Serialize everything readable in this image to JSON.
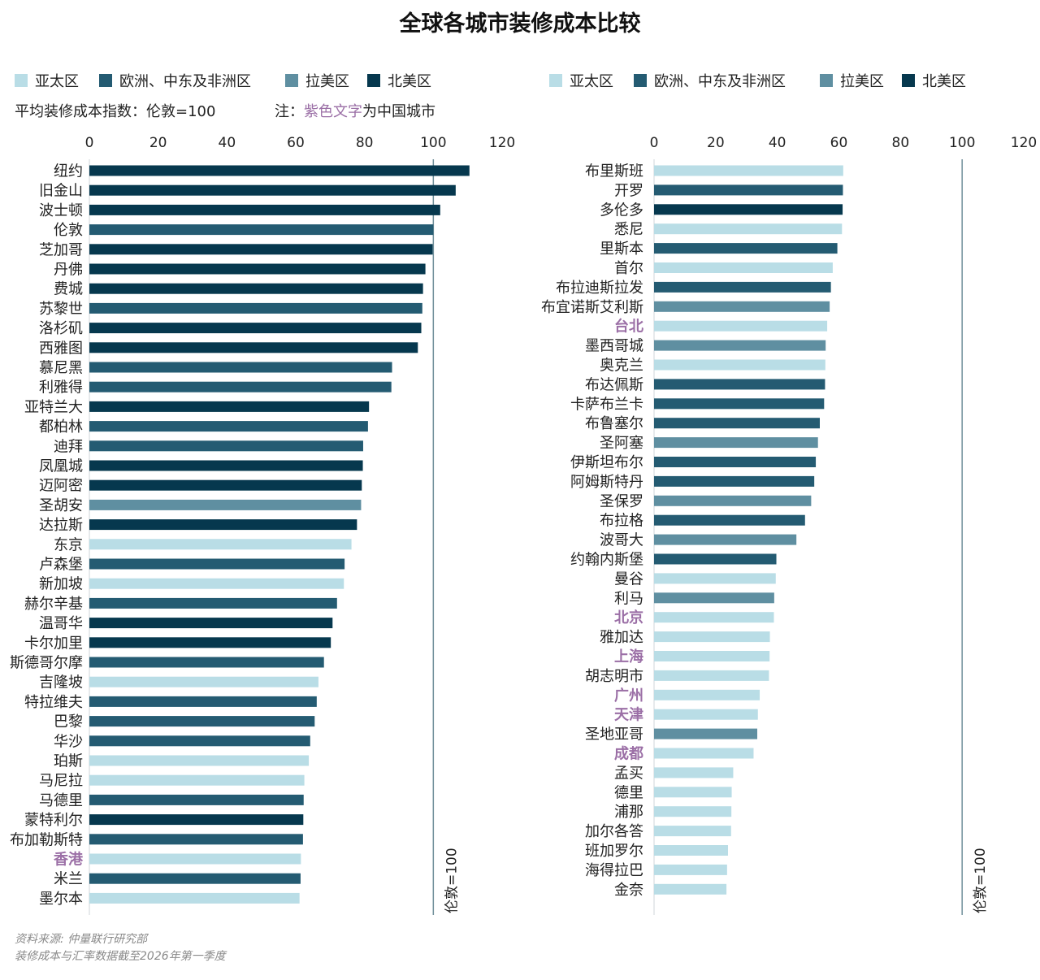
{
  "title": "全球各城市装修成本比较",
  "colors": {
    "亚太区": "#b9dde6",
    "欧洲、中东及非洲区": "#245b72",
    "拉美区": "#5f8fa1",
    "北美区": "#06384e",
    "china_label": "#9b6fa6",
    "reference_line": "#6f8e99"
  },
  "legend": [
    "亚太区",
    "欧洲、中东及非洲区",
    "拉美区",
    "北美区"
  ],
  "note_index": "平均装修成本指数：伦敦=100",
  "note_prefix": "注：",
  "note_purple": "紫色文字",
  "note_suffix": "为中国城市",
  "reference_label": "伦敦=100",
  "source_lines": [
    "资料来源: 仲量联行研究部",
    "装修成本与汇率数据截至2026年第一季度"
  ],
  "chart_data": [
    {
      "type": "bar",
      "orientation": "horizontal",
      "xlim": [
        0,
        120
      ],
      "xticks": [
        0,
        20,
        40,
        60,
        80,
        100,
        120
      ],
      "reference_value": 100,
      "bars": [
        {
          "city": "纽约",
          "value": 110.5,
          "region": "北美区"
        },
        {
          "city": "旧金山",
          "value": 106.5,
          "region": "北美区"
        },
        {
          "city": "波士顿",
          "value": 102,
          "region": "北美区"
        },
        {
          "city": "伦敦",
          "value": 100,
          "region": "欧洲、中东及非洲区"
        },
        {
          "city": "芝加哥",
          "value": 99.8,
          "region": "北美区"
        },
        {
          "city": "丹佛",
          "value": 97.7,
          "region": "北美区"
        },
        {
          "city": "费城",
          "value": 97,
          "region": "北美区"
        },
        {
          "city": "苏黎世",
          "value": 96.8,
          "region": "欧洲、中东及非洲区"
        },
        {
          "city": "洛杉矶",
          "value": 96.5,
          "region": "北美区"
        },
        {
          "city": "西雅图",
          "value": 95.5,
          "region": "北美区"
        },
        {
          "city": "慕尼黑",
          "value": 88,
          "region": "欧洲、中东及非洲区"
        },
        {
          "city": "利雅得",
          "value": 87.8,
          "region": "欧洲、中东及非洲区"
        },
        {
          "city": "亚特兰大",
          "value": 81.3,
          "region": "北美区"
        },
        {
          "city": "都柏林",
          "value": 81,
          "region": "欧洲、中东及非洲区"
        },
        {
          "city": "迪拜",
          "value": 79.6,
          "region": "欧洲、中东及非洲区"
        },
        {
          "city": "凤凰城",
          "value": 79.5,
          "region": "北美区"
        },
        {
          "city": "迈阿密",
          "value": 79.2,
          "region": "北美区"
        },
        {
          "city": "圣胡安",
          "value": 79,
          "region": "拉美区"
        },
        {
          "city": "达拉斯",
          "value": 77.8,
          "region": "北美区"
        },
        {
          "city": "东京",
          "value": 76.2,
          "region": "亚太区"
        },
        {
          "city": "卢森堡",
          "value": 74.2,
          "region": "欧洲、中东及非洲区"
        },
        {
          "city": "新加坡",
          "value": 74,
          "region": "亚太区"
        },
        {
          "city": "赫尔辛基",
          "value": 72,
          "region": "欧洲、中东及非洲区"
        },
        {
          "city": "温哥华",
          "value": 70.7,
          "region": "北美区"
        },
        {
          "city": "卡尔加里",
          "value": 70.2,
          "region": "北美区"
        },
        {
          "city": "斯德哥尔摩",
          "value": 68.2,
          "region": "欧洲、中东及非洲区"
        },
        {
          "city": "吉隆坡",
          "value": 66.6,
          "region": "亚太区"
        },
        {
          "city": "特拉维夫",
          "value": 66.1,
          "region": "欧洲、中东及非洲区"
        },
        {
          "city": "巴黎",
          "value": 65.5,
          "region": "欧洲、中东及非洲区"
        },
        {
          "city": "华沙",
          "value": 64.2,
          "region": "欧洲、中东及非洲区"
        },
        {
          "city": "珀斯",
          "value": 63.8,
          "region": "亚太区"
        },
        {
          "city": "马尼拉",
          "value": 62.5,
          "region": "亚太区"
        },
        {
          "city": "马德里",
          "value": 62.3,
          "region": "欧洲、中东及非洲区"
        },
        {
          "city": "蒙特利尔",
          "value": 62.2,
          "region": "北美区"
        },
        {
          "city": "布加勒斯特",
          "value": 62.1,
          "region": "欧洲、中东及非洲区"
        },
        {
          "city": "香港",
          "value": 61.5,
          "region": "亚太区",
          "china": true
        },
        {
          "city": "米兰",
          "value": 61.4,
          "region": "欧洲、中东及非洲区"
        },
        {
          "city": "墨尔本",
          "value": 61.1,
          "region": "亚太区"
        }
      ]
    },
    {
      "type": "bar",
      "orientation": "horizontal",
      "xlim": [
        0,
        120
      ],
      "xticks": [
        0,
        20,
        40,
        60,
        80,
        100,
        120
      ],
      "reference_value": 100,
      "bars": [
        {
          "city": "布里斯班",
          "value": 61.4,
          "region": "亚太区"
        },
        {
          "city": "开罗",
          "value": 61.3,
          "region": "欧洲、中东及非洲区"
        },
        {
          "city": "多伦多",
          "value": 61.2,
          "region": "北美区"
        },
        {
          "city": "悉尼",
          "value": 61,
          "region": "亚太区"
        },
        {
          "city": "里斯本",
          "value": 59.5,
          "region": "欧洲、中东及非洲区"
        },
        {
          "city": "首尔",
          "value": 58,
          "region": "亚太区"
        },
        {
          "city": "布拉迪斯拉发",
          "value": 57.4,
          "region": "欧洲、中东及非洲区"
        },
        {
          "city": "布宜诺斯艾利斯",
          "value": 57,
          "region": "拉美区"
        },
        {
          "city": "台北",
          "value": 56.2,
          "region": "亚太区",
          "china": true
        },
        {
          "city": "墨西哥城",
          "value": 55.7,
          "region": "拉美区"
        },
        {
          "city": "奥克兰",
          "value": 55.6,
          "region": "亚太区"
        },
        {
          "city": "布达佩斯",
          "value": 55.5,
          "region": "欧洲、中东及非洲区"
        },
        {
          "city": "卡萨布兰卡",
          "value": 55.2,
          "region": "欧洲、中东及非洲区"
        },
        {
          "city": "布鲁塞尔",
          "value": 53.8,
          "region": "欧洲、中东及非洲区"
        },
        {
          "city": "圣阿塞",
          "value": 53.2,
          "region": "拉美区"
        },
        {
          "city": "伊斯坦布尔",
          "value": 52.5,
          "region": "欧洲、中东及非洲区"
        },
        {
          "city": "阿姆斯特丹",
          "value": 52,
          "region": "欧洲、中东及非洲区"
        },
        {
          "city": "圣保罗",
          "value": 51,
          "region": "拉美区"
        },
        {
          "city": "布拉格",
          "value": 49,
          "region": "欧洲、中东及非洲区"
        },
        {
          "city": "波哥大",
          "value": 46.2,
          "region": "拉美区"
        },
        {
          "city": "约翰内斯堡",
          "value": 39.7,
          "region": "欧洲、中东及非洲区"
        },
        {
          "city": "曼谷",
          "value": 39.5,
          "region": "亚太区"
        },
        {
          "city": "利马",
          "value": 39,
          "region": "拉美区"
        },
        {
          "city": "北京",
          "value": 38.9,
          "region": "亚太区",
          "china": true
        },
        {
          "city": "雅加达",
          "value": 37.6,
          "region": "亚太区"
        },
        {
          "city": "上海",
          "value": 37.5,
          "region": "亚太区",
          "china": true
        },
        {
          "city": "胡志明市",
          "value": 37.3,
          "region": "亚太区"
        },
        {
          "city": "广州",
          "value": 34.3,
          "region": "亚太区",
          "china": true
        },
        {
          "city": "天津",
          "value": 33.7,
          "region": "亚太区",
          "china": true
        },
        {
          "city": "圣地亚哥",
          "value": 33.5,
          "region": "拉美区"
        },
        {
          "city": "成都",
          "value": 32.3,
          "region": "亚太区",
          "china": true
        },
        {
          "city": "孟买",
          "value": 25.7,
          "region": "亚太区"
        },
        {
          "city": "德里",
          "value": 25.2,
          "region": "亚太区"
        },
        {
          "city": "浦那",
          "value": 25.1,
          "region": "亚太区"
        },
        {
          "city": "加尔各答",
          "value": 25,
          "region": "亚太区"
        },
        {
          "city": "班加罗尔",
          "value": 24,
          "region": "亚太区"
        },
        {
          "city": "海得拉巴",
          "value": 23.7,
          "region": "亚太区"
        },
        {
          "city": "金奈",
          "value": 23.5,
          "region": "亚太区"
        }
      ]
    }
  ]
}
